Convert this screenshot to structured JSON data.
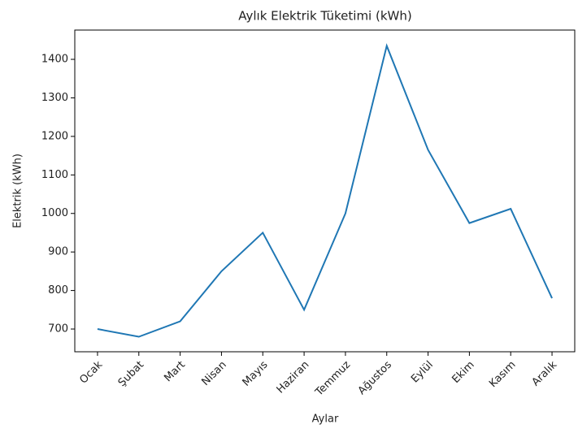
{
  "chart_data": {
    "type": "line",
    "title": "Aylık Elektrik Tüketimi (kWh)",
    "x_label": "Aylar",
    "y_label": "Elektrik (kWh)",
    "categories": [
      "Ocak",
      "Şubat",
      "Mart",
      "Nisan",
      "Mayıs",
      "Haziran",
      "Temmuz",
      "Ağustos",
      "Eylül",
      "Ekim",
      "Kasım",
      "Aralık"
    ],
    "values": [
      700,
      680,
      720,
      850,
      950,
      750,
      1000,
      1435,
      1165,
      975,
      1012,
      780
    ],
    "color": "#1f77b4",
    "ylim": [
      641,
      1476
    ],
    "yticks": [
      700,
      800,
      900,
      1000,
      1100,
      1200,
      1300,
      1400
    ],
    "grid": false
  }
}
